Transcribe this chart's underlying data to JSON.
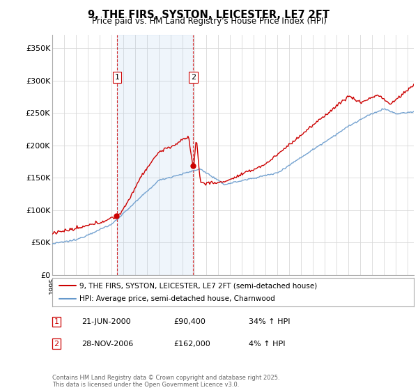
{
  "title": "9, THE FIRS, SYSTON, LEICESTER, LE7 2FT",
  "subtitle": "Price paid vs. HM Land Registry's House Price Index (HPI)",
  "ylabel_ticks": [
    "£0",
    "£50K",
    "£100K",
    "£150K",
    "£200K",
    "£250K",
    "£300K",
    "£350K"
  ],
  "ytick_values": [
    0,
    50000,
    100000,
    150000,
    200000,
    250000,
    300000,
    350000
  ],
  "ylim": [
    0,
    370000
  ],
  "legend_line1": "9, THE FIRS, SYSTON, LEICESTER, LE7 2FT (semi-detached house)",
  "legend_line2": "HPI: Average price, semi-detached house, Charnwood",
  "sale1_date": "21-JUN-2000",
  "sale1_price": "£90,400",
  "sale1_hpi": "34% ↑ HPI",
  "sale2_date": "28-NOV-2006",
  "sale2_price": "£162,000",
  "sale2_hpi": "4% ↑ HPI",
  "copyright": "Contains HM Land Registry data © Crown copyright and database right 2025.\nThis data is licensed under the Open Government Licence v3.0.",
  "line_color_red": "#cc0000",
  "line_color_blue": "#6699cc",
  "sale1_year": 2000.47,
  "sale2_year": 2006.9,
  "xstart_year": 1995,
  "xend_year": 2025
}
